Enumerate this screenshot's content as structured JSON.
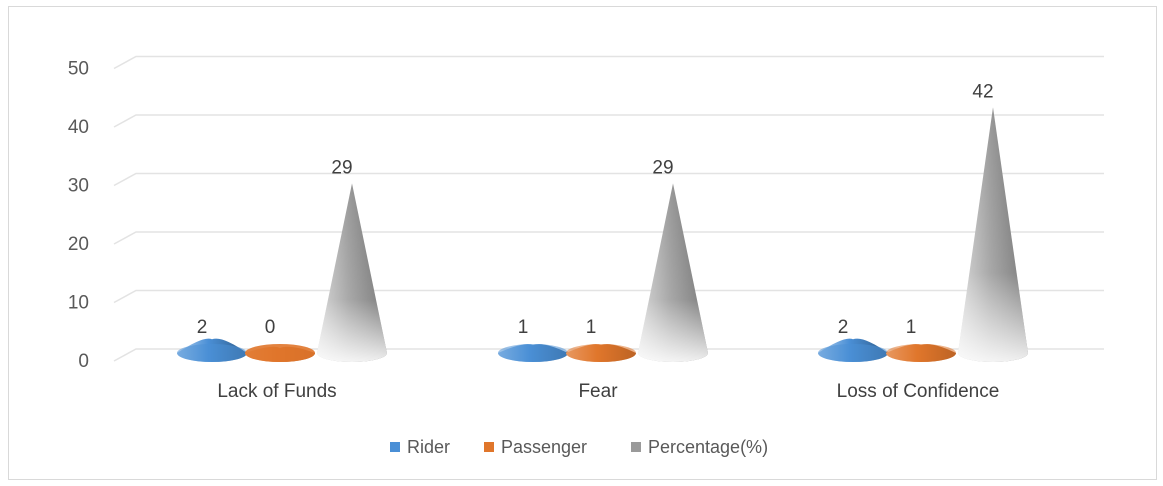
{
  "chart_data": {
    "type": "bar",
    "bar_shape": "cone",
    "categories": [
      "Lack of Funds",
      "Fear",
      "Loss of Confidence"
    ],
    "series": [
      {
        "name": "Rider",
        "values": [
          2,
          1,
          2
        ],
        "color": "#4a8fd6"
      },
      {
        "name": "Passenger",
        "values": [
          0,
          1,
          1
        ],
        "color": "#e0762b"
      },
      {
        "name": "Percentage(%)",
        "values": [
          29,
          29,
          42
        ],
        "color": "#9a9a9a"
      }
    ],
    "data_labels": [
      [
        "2",
        "1",
        "2"
      ],
      [
        "0",
        "1",
        "1"
      ],
      [
        "29",
        "29",
        "42"
      ]
    ],
    "y_ticks": [
      "0",
      "10",
      "20",
      "30",
      "40",
      "50"
    ],
    "ylim": [
      0,
      50
    ],
    "grid": true,
    "legend_position": "bottom"
  }
}
